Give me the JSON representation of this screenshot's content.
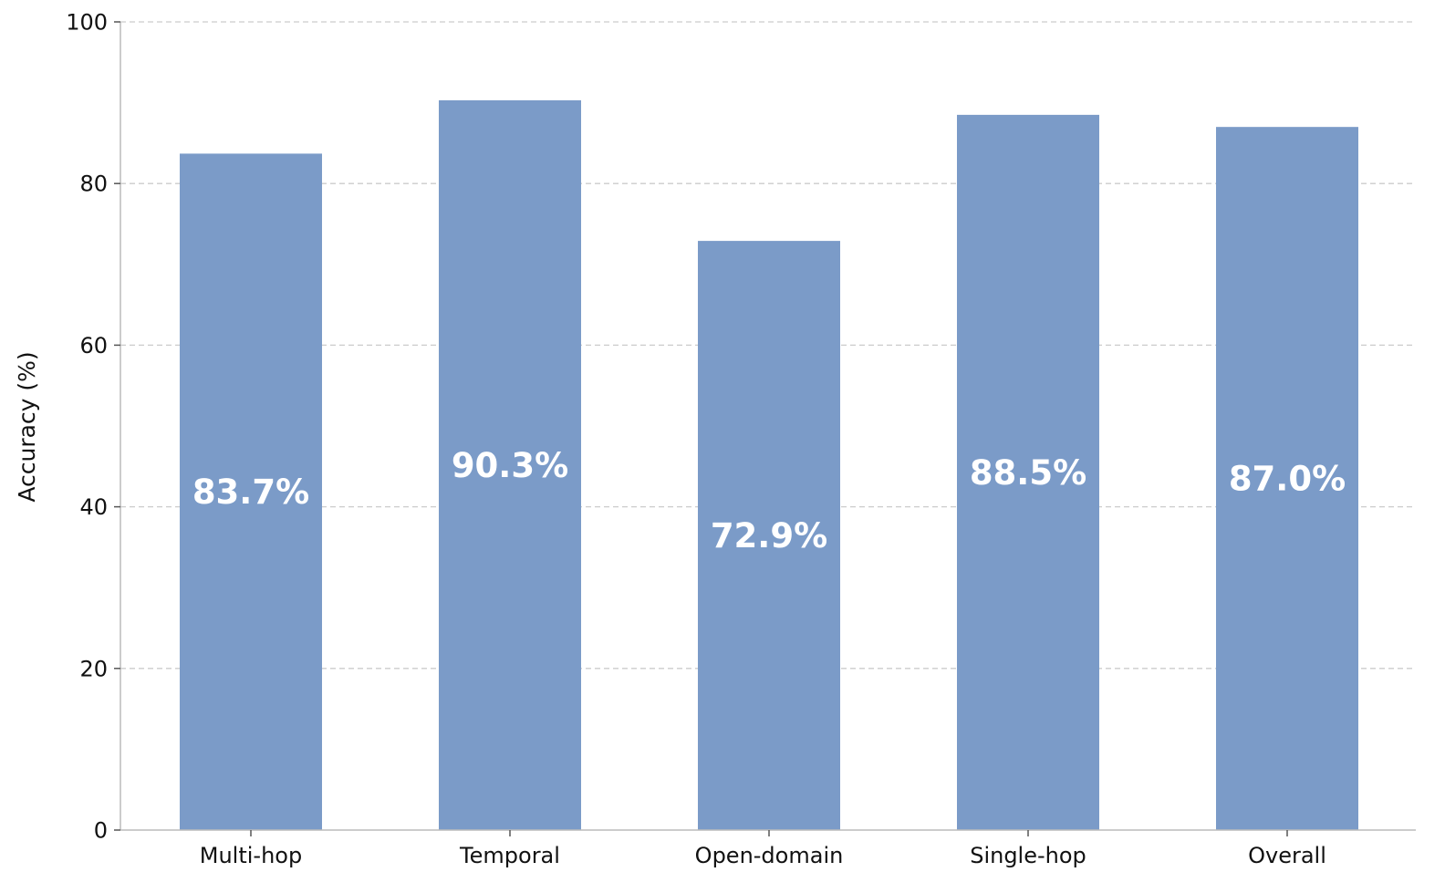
{
  "chart_data": {
    "type": "bar",
    "categories": [
      "Multi-hop",
      "Temporal",
      "Open-domain",
      "Single-hop",
      "Overall"
    ],
    "values": [
      83.7,
      90.3,
      72.9,
      88.5,
      87.0
    ],
    "data_labels": [
      "83.7%",
      "90.3%",
      "72.9%",
      "88.5%",
      "87.0%"
    ],
    "xlabel": "",
    "ylabel": "Accuracy (%)",
    "ylim": [
      0,
      100
    ],
    "yticks": [
      0,
      20,
      40,
      60,
      80,
      100
    ],
    "ytick_labels": [
      "0",
      "20",
      "40",
      "60",
      "80",
      "100"
    ],
    "grid": "horizontal dashed",
    "legend": "none",
    "bar_color": "#7b9bc8",
    "label_color": "#ffffff"
  }
}
